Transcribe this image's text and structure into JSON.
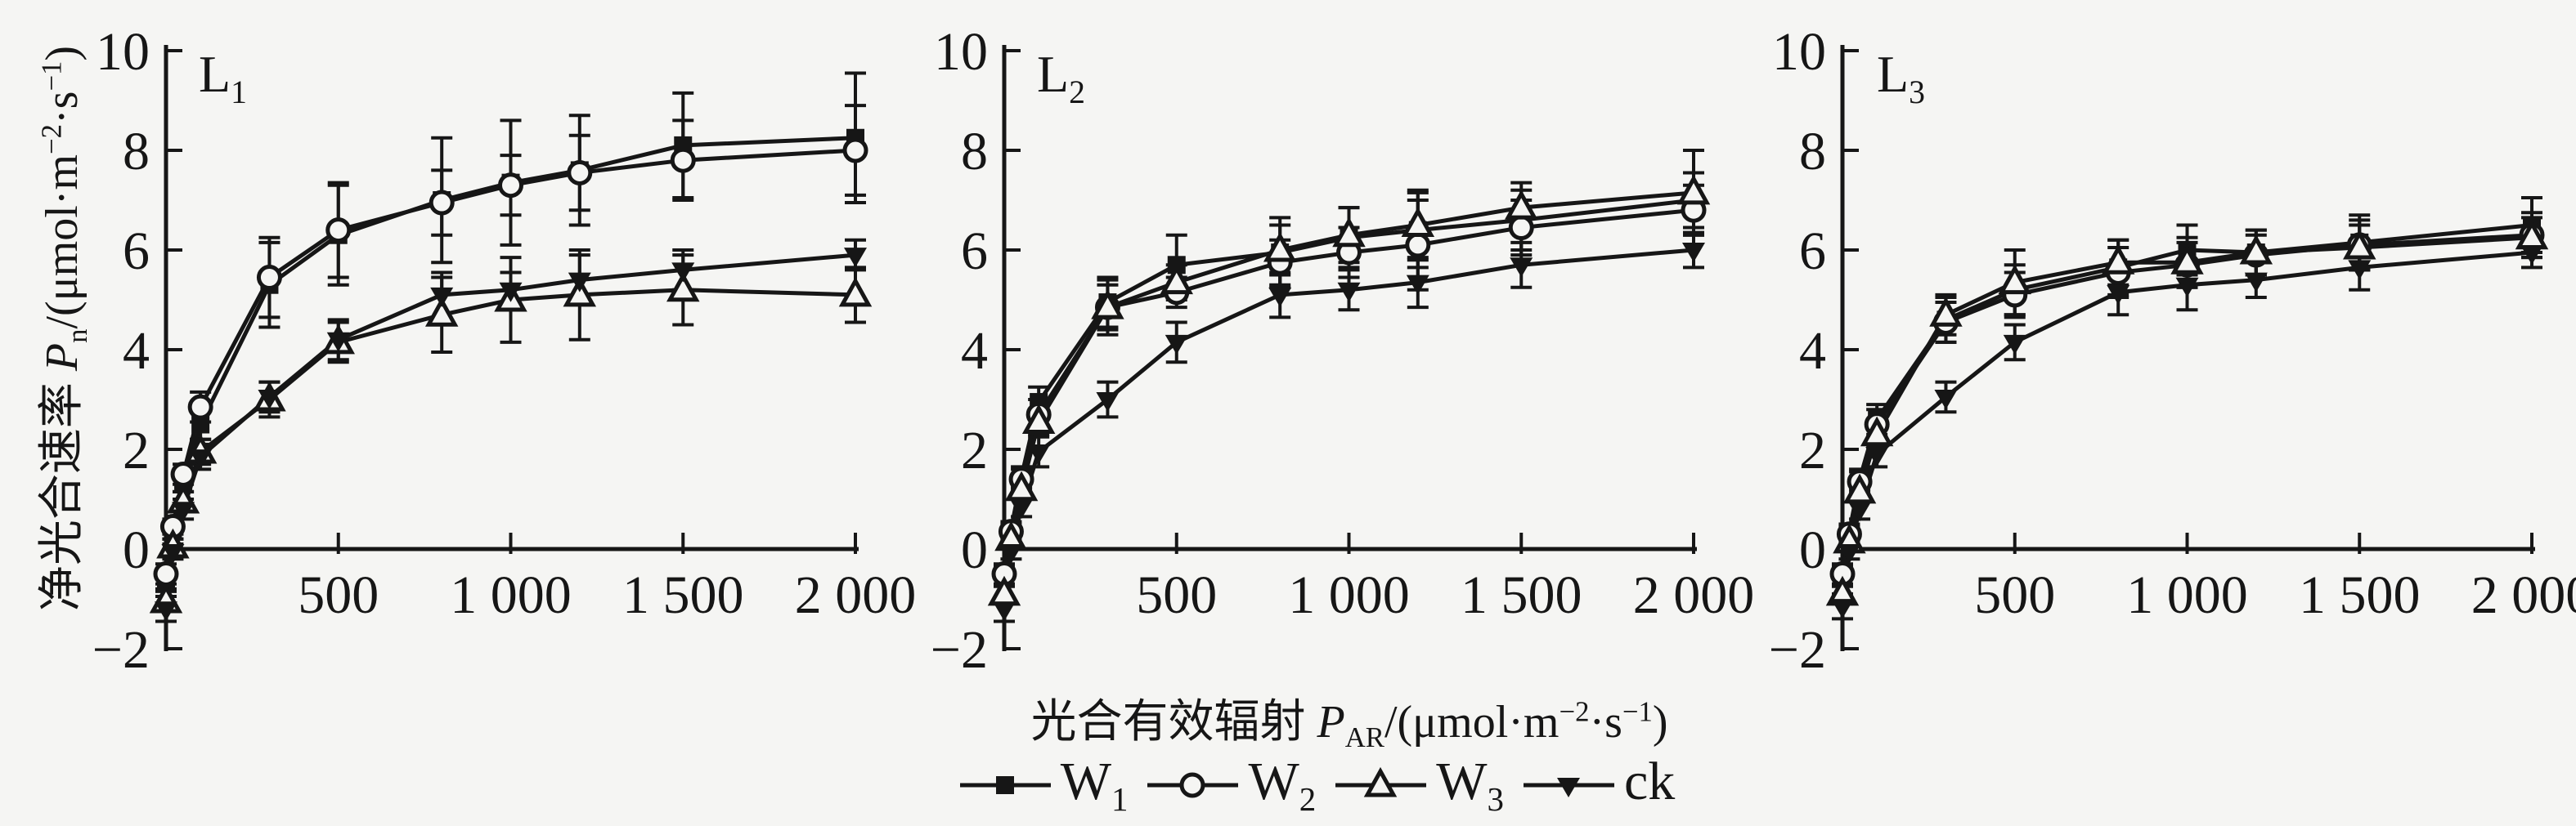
{
  "figure": {
    "background": "#f5f5f3",
    "ink": "#161616"
  },
  "chart_data": {
    "type": "line",
    "title": "",
    "grid": false,
    "xlim": [
      0,
      2000
    ],
    "ylim": [
      -2,
      10
    ],
    "legend_position": "bottom-center",
    "xlabel": {
      "cn": "光合有效辐射 ",
      "var": "P",
      "var_sub": "AR",
      "unit_pre": "/(μmol·m",
      "sup1": "−2",
      "unit_mid": "·s",
      "sup2": "−1",
      "unit_end": ")"
    },
    "ylabel": {
      "cn": "净光合速率 ",
      "var": "P",
      "var_sub": "n",
      "unit_pre": "/(μmol·m",
      "sup1": "−2",
      "unit_mid": "·s",
      "sup2": "−1",
      "unit_end": ")"
    },
    "x_values": [
      0,
      20,
      50,
      100,
      300,
      500,
      800,
      1000,
      1200,
      1500,
      2000
    ],
    "x_ticks": [
      {
        "v": 500,
        "label": "500"
      },
      {
        "v": 1000,
        "label": "1 000"
      },
      {
        "v": 1500,
        "label": "1 500"
      },
      {
        "v": 2000,
        "label": "2 000"
      }
    ],
    "y_ticks": [
      {
        "v": 10,
        "label": "10"
      },
      {
        "v": 8,
        "label": "8"
      },
      {
        "v": 6,
        "label": "6"
      },
      {
        "v": 4,
        "label": "4"
      },
      {
        "v": 2,
        "label": "2"
      },
      {
        "v": 0,
        "label": "0"
      },
      {
        "v": -2,
        "label": "−2"
      }
    ],
    "series_meta": [
      {
        "key": "W1",
        "marker": "filled-square"
      },
      {
        "key": "W2",
        "marker": "open-circle"
      },
      {
        "key": "W3",
        "marker": "open-triangle-up"
      },
      {
        "key": "ck",
        "marker": "filled-triangle-down"
      }
    ],
    "panels": [
      {
        "label": "L",
        "sub": "1",
        "series": {
          "W1": {
            "values": [
              -0.6,
              0.35,
              1.35,
              2.5,
              5.3,
              6.3,
              7.0,
              7.35,
              7.6,
              8.1,
              8.25
            ],
            "err": [
              0.2,
              0.15,
              0.2,
              0.3,
              0.85,
              1.0,
              1.25,
              1.25,
              1.1,
              1.05,
              1.3
            ]
          },
          "W2": {
            "values": [
              -0.5,
              0.45,
              1.5,
              2.85,
              5.45,
              6.4,
              6.95,
              7.3,
              7.55,
              7.8,
              8.0
            ],
            "err": [
              0.2,
              0.15,
              0.2,
              0.3,
              0.8,
              0.95,
              0.65,
              0.6,
              0.75,
              0.8,
              0.9
            ]
          },
          "W3": {
            "values": [
              -1.05,
              0.05,
              0.95,
              1.95,
              3.0,
              4.15,
              4.7,
              5.0,
              5.1,
              5.2,
              5.1
            ],
            "err": [
              0.2,
              0.15,
              0.2,
              0.25,
              0.35,
              0.4,
              0.75,
              0.85,
              0.9,
              0.7,
              0.55
            ]
          },
          "ck": {
            "values": [
              -1.2,
              -0.05,
              0.8,
              1.85,
              3.05,
              4.2,
              5.1,
              5.2,
              5.4,
              5.6,
              5.9
            ],
            "err": [
              0.25,
              0.15,
              0.2,
              0.25,
              0.3,
              0.4,
              0.45,
              0.35,
              0.5,
              0.4,
              0.3
            ]
          }
        }
      },
      {
        "label": "L",
        "sub": "2",
        "series": {
          "W1": {
            "values": [
              -0.55,
              0.4,
              1.45,
              2.95,
              4.95,
              5.7,
              5.95,
              6.25,
              6.4,
              6.6,
              7.0
            ],
            "err": [
              0.2,
              0.15,
              0.2,
              0.3,
              0.5,
              0.6,
              0.7,
              0.6,
              0.75,
              0.6,
              0.55
            ]
          },
          "W2": {
            "values": [
              -0.5,
              0.35,
              1.4,
              2.7,
              4.85,
              5.15,
              5.75,
              5.95,
              6.1,
              6.45,
              6.8
            ],
            "err": [
              0.2,
              0.15,
              0.2,
              0.3,
              0.45,
              0.3,
              0.45,
              0.5,
              0.9,
              0.55,
              0.5
            ]
          },
          "W3": {
            "values": [
              -0.9,
              0.2,
              1.2,
              2.55,
              4.85,
              5.35,
              6.0,
              6.3,
              6.5,
              6.85,
              7.15
            ],
            "err": [
              0.2,
              0.15,
              0.2,
              0.25,
              0.55,
              0.35,
              0.5,
              0.55,
              0.7,
              0.5,
              0.85
            ]
          },
          "ck": {
            "values": [
              -1.2,
              -0.05,
              0.85,
              1.95,
              3.0,
              4.15,
              5.1,
              5.2,
              5.35,
              5.7,
              6.0
            ],
            "err": [
              0.25,
              0.15,
              0.2,
              0.3,
              0.35,
              0.4,
              0.45,
              0.4,
              0.5,
              0.45,
              0.35
            ]
          }
        }
      },
      {
        "label": "L",
        "sub": "3",
        "series": {
          "W1": {
            "values": [
              -0.55,
              0.35,
              1.4,
              2.6,
              4.6,
              5.2,
              5.65,
              6.0,
              5.95,
              6.15,
              6.5
            ],
            "err": [
              0.2,
              0.15,
              0.2,
              0.3,
              0.45,
              0.5,
              0.55,
              0.5,
              0.45,
              0.55,
              0.55
            ]
          },
          "W2": {
            "values": [
              -0.5,
              0.3,
              1.35,
              2.5,
              4.55,
              5.1,
              5.55,
              5.7,
              5.9,
              6.1,
              6.3
            ],
            "err": [
              0.2,
              0.15,
              0.2,
              0.3,
              0.4,
              0.45,
              0.5,
              0.45,
              0.4,
              0.5,
              0.45
            ]
          },
          "W3": {
            "values": [
              -0.9,
              0.15,
              1.15,
              2.3,
              4.7,
              5.35,
              5.75,
              5.75,
              5.95,
              6.05,
              6.25
            ],
            "err": [
              0.2,
              0.15,
              0.2,
              0.25,
              0.4,
              0.65,
              0.45,
              0.5,
              0.45,
              0.45,
              0.4
            ]
          },
          "ck": {
            "values": [
              -1.15,
              -0.05,
              0.8,
              1.9,
              3.05,
              4.15,
              5.15,
              5.3,
              5.4,
              5.65,
              5.95
            ],
            "err": [
              0.25,
              0.15,
              0.2,
              0.25,
              0.3,
              0.35,
              0.45,
              0.5,
              0.35,
              0.45,
              0.3
            ]
          }
        }
      }
    ]
  },
  "legend": {
    "items": [
      {
        "text": "W",
        "sub": "1",
        "marker": "filled-square"
      },
      {
        "text": "W",
        "sub": "2",
        "marker": "open-circle"
      },
      {
        "text": "W",
        "sub": "3",
        "marker": "open-triangle-up"
      },
      {
        "text": "ck",
        "sub": "",
        "marker": "filled-triangle-down"
      }
    ]
  }
}
